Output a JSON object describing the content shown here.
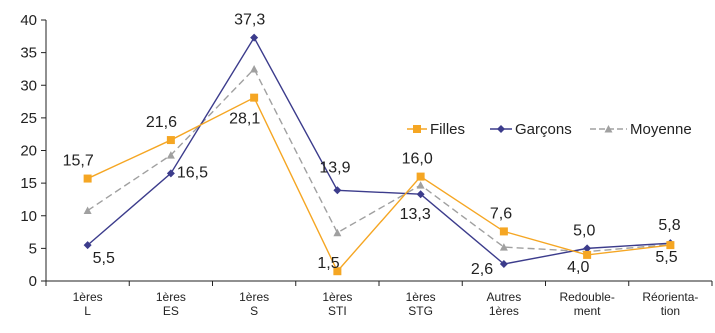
{
  "chart_data": {
    "type": "line",
    "categories": [
      [
        "1ères",
        "L"
      ],
      [
        "1ères",
        "ES"
      ],
      [
        "1ères",
        "S"
      ],
      [
        "1ères",
        "STI"
      ],
      [
        "1ères",
        "STG"
      ],
      [
        "Autres",
        "1ères"
      ],
      [
        "Redouble-",
        "ment"
      ],
      [
        "Réorienta-",
        "tion"
      ]
    ],
    "ylim": [
      0,
      40
    ],
    "yticks": [
      "0",
      "5",
      "10",
      "15",
      "20",
      "25",
      "30",
      "35",
      "40"
    ],
    "grid": false,
    "legend_position": "right",
    "series": [
      {
        "name": "Filles",
        "color": "#F5A623",
        "marker": "square",
        "values": [
          15.7,
          21.6,
          28.1,
          1.5,
          16.0,
          7.6,
          4.0,
          5.5
        ],
        "labels": [
          "15,7",
          "21,6",
          "28,1",
          "1,5",
          "16,0",
          "7,6",
          "4,0",
          "5,5"
        ]
      },
      {
        "name": "Garçons",
        "color": "#3C3C8C",
        "marker": "diamond",
        "values": [
          5.5,
          16.5,
          37.3,
          13.9,
          13.3,
          2.6,
          5.0,
          5.8
        ],
        "labels": [
          "5,5",
          "16,5",
          "37,3",
          "13,9",
          "13,3",
          "2,6",
          "5,0",
          "5,8"
        ]
      },
      {
        "name": "Moyenne",
        "color": "#A0A0A0",
        "marker": "triangle",
        "dashed": true,
        "values": [
          10.8,
          19.3,
          32.5,
          7.4,
          14.7,
          5.2,
          4.5,
          5.6
        ]
      }
    ]
  }
}
